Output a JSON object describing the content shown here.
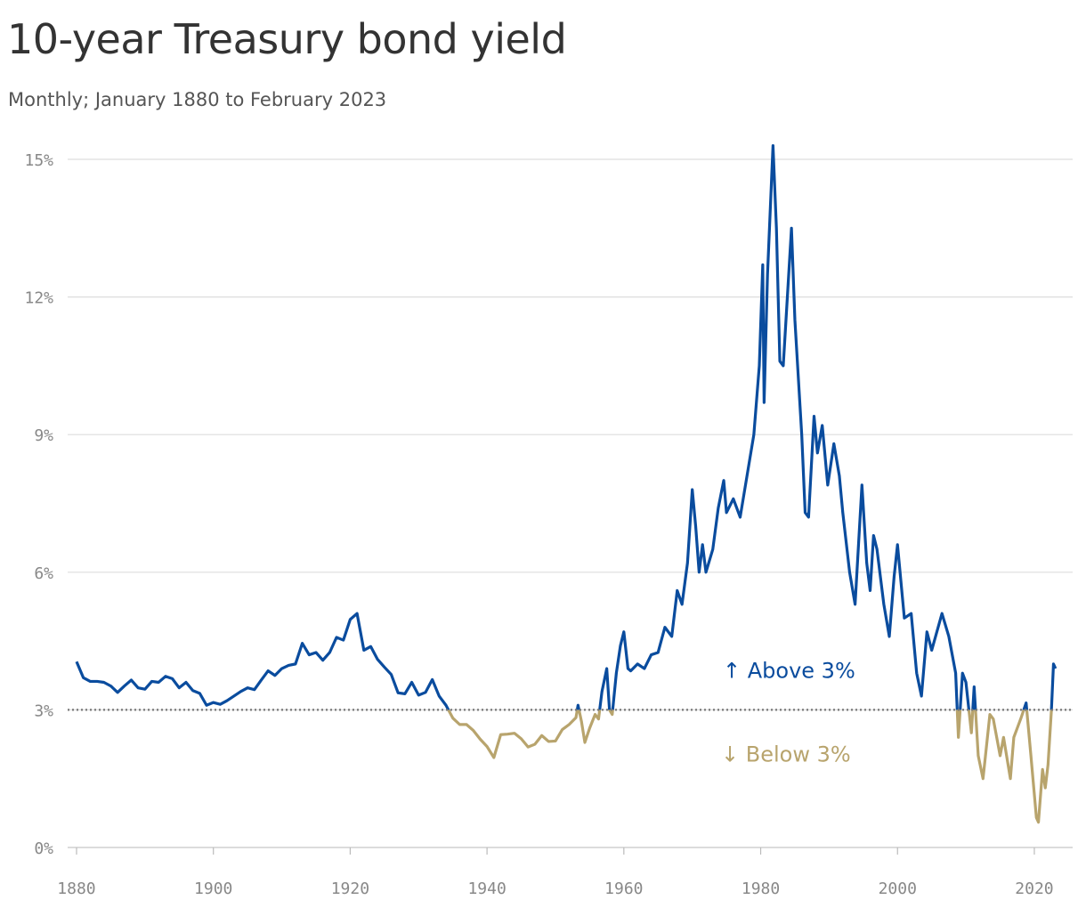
{
  "chart_data": {
    "type": "line",
    "title": "10-year Treasury bond yield",
    "subtitle": "Monthly; January 1880 to February 2023",
    "annotation_above": "↑ Above 3%",
    "annotation_below": "↓ Below 3%",
    "threshold": 3,
    "color_above": "#0a4c9e",
    "color_below": "#b8a46d",
    "grid": true,
    "xlim": [
      1878.7,
      2025.6
    ],
    "ylim": [
      0,
      15
    ],
    "xticks": [
      1880,
      1900,
      1920,
      1940,
      1960,
      1980,
      2000,
      2020
    ],
    "yticks": [
      {
        "value": 0,
        "label": "0%"
      },
      {
        "value": 3,
        "label": "3%"
      },
      {
        "value": 6,
        "label": "6%"
      },
      {
        "value": 9,
        "label": "9%"
      },
      {
        "value": 12,
        "label": "12%"
      },
      {
        "value": 15,
        "label": "15%"
      }
    ],
    "x": [
      1880,
      1881,
      1882,
      1883,
      1884,
      1885,
      1886,
      1887,
      1888,
      1889,
      1890,
      1891,
      1892,
      1893,
      1894,
      1895,
      1896,
      1897,
      1898,
      1899,
      1900,
      1901,
      1902,
      1903,
      1904,
      1905,
      1906,
      1907,
      1908,
      1909,
      1910,
      1911,
      1912,
      1913,
      1914,
      1915,
      1916,
      1917,
      1918,
      1919,
      1920,
      1921,
      1922,
      1923,
      1924,
      1925,
      1926,
      1927,
      1928,
      1929,
      1930,
      1931,
      1932,
      1933,
      1934,
      1935,
      1936,
      1937,
      1938,
      1939,
      1940,
      1941,
      1942,
      1943,
      1944,
      1945,
      1946,
      1947,
      1948,
      1949,
      1950,
      1951,
      1952,
      1953,
      1953.3,
      1953.8,
      1954.3,
      1955,
      1955.8,
      1956.3,
      1956.8,
      1957.5,
      1957.9,
      1958.3,
      1958.9,
      1959.5,
      1960,
      1960.6,
      1961,
      1962,
      1963,
      1964,
      1965,
      1966,
      1967,
      1967.8,
      1968.5,
      1969.3,
      1970,
      1970.5,
      1971,
      1971.5,
      1972,
      1973,
      1973.8,
      1974.6,
      1975,
      1976,
      1977,
      1978,
      1979,
      1979.8,
      1980.3,
      1980.5,
      1981,
      1981.8,
      1982.3,
      1982.8,
      1983.3,
      1984.5,
      1985,
      1986,
      1986.5,
      1987,
      1987.8,
      1988.3,
      1989,
      1989.8,
      1990.7,
      1991.5,
      1992,
      1993,
      1993.8,
      1994.8,
      1995.5,
      1996,
      1996.5,
      1997,
      1998,
      1998.8,
      1999.5,
      2000,
      2001,
      2002,
      2002.8,
      2003.5,
      2004.3,
      2005,
      2006.5,
      2007.5,
      2008.5,
      2008.9,
      2009.5,
      2010,
      2010.8,
      2011.2,
      2011.8,
      2012.5,
      2013.5,
      2014,
      2015,
      2015.5,
      2016.5,
      2017,
      2018,
      2018.8,
      2019.5,
      2020.3,
      2020.6,
      2021.2,
      2021.6,
      2022,
      2022.5,
      2022.8,
      2023.1
    ],
    "values": [
      4.05,
      3.7,
      3.62,
      3.62,
      3.6,
      3.52,
      3.38,
      3.52,
      3.65,
      3.48,
      3.45,
      3.62,
      3.6,
      3.73,
      3.68,
      3.48,
      3.6,
      3.42,
      3.36,
      3.1,
      3.16,
      3.12,
      3.2,
      3.3,
      3.4,
      3.48,
      3.44,
      3.65,
      3.85,
      3.75,
      3.9,
      3.97,
      4.0,
      4.45,
      4.2,
      4.25,
      4.08,
      4.25,
      4.58,
      4.52,
      4.97,
      5.1,
      4.3,
      4.38,
      4.1,
      3.93,
      3.77,
      3.37,
      3.35,
      3.6,
      3.32,
      3.38,
      3.66,
      3.3,
      3.1,
      2.82,
      2.68,
      2.68,
      2.55,
      2.36,
      2.2,
      1.96,
      2.46,
      2.47,
      2.49,
      2.37,
      2.19,
      2.25,
      2.44,
      2.31,
      2.32,
      2.57,
      2.68,
      2.83,
      3.1,
      2.75,
      2.29,
      2.6,
      2.9,
      2.8,
      3.4,
      3.9,
      3.0,
      2.9,
      3.8,
      4.4,
      4.7,
      3.9,
      3.85,
      4.0,
      3.9,
      4.2,
      4.25,
      4.8,
      4.6,
      5.6,
      5.3,
      6.2,
      7.8,
      7.0,
      6.0,
      6.6,
      6.0,
      6.5,
      7.4,
      8.0,
      7.3,
      7.6,
      7.2,
      8.1,
      9.0,
      10.5,
      12.7,
      9.7,
      12.5,
      15.3,
      13.5,
      10.6,
      10.5,
      13.5,
      11.5,
      9.0,
      7.3,
      7.2,
      9.4,
      8.6,
      9.2,
      7.9,
      8.8,
      8.1,
      7.3,
      6.0,
      5.3,
      7.9,
      6.2,
      5.6,
      6.8,
      6.5,
      5.3,
      4.6,
      5.9,
      6.6,
      5.0,
      5.1,
      3.8,
      3.3,
      4.7,
      4.3,
      5.1,
      4.6,
      3.8,
      2.4,
      3.8,
      3.6,
      2.5,
      3.5,
      2.0,
      1.5,
      2.9,
      2.8,
      2.0,
      2.4,
      1.5,
      2.4,
      2.8,
      3.15,
      2.0,
      0.65,
      0.55,
      1.7,
      1.3,
      1.8,
      3.0,
      4.0,
      3.9
    ]
  }
}
